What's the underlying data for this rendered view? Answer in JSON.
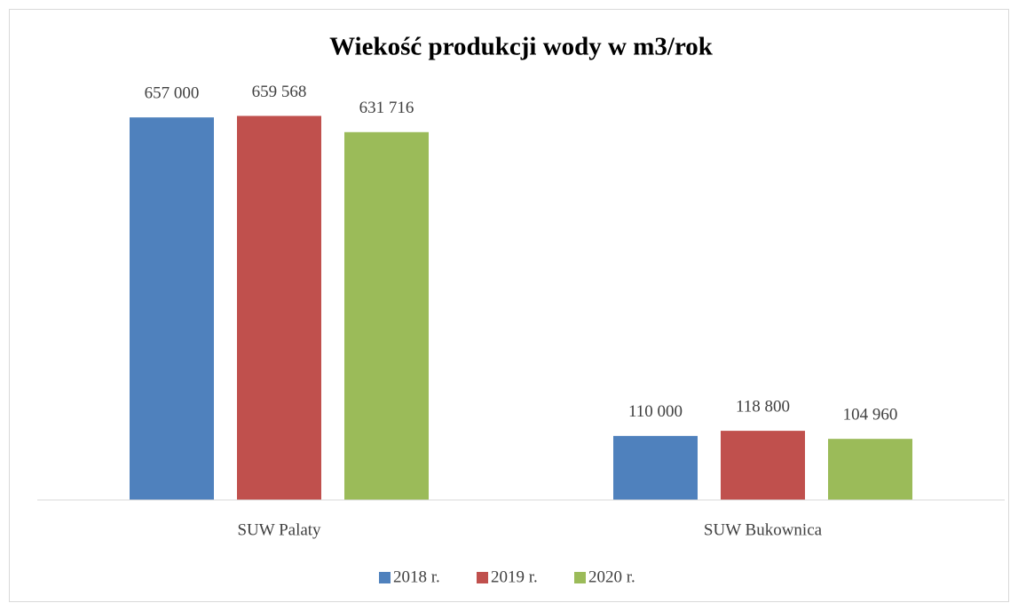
{
  "chart_data": {
    "type": "bar",
    "title": "Wiekość produkcji wody w m3/rok",
    "categories": [
      "SUW Palaty",
      "SUW Bukownica"
    ],
    "series": [
      {
        "name": "2018 r.",
        "color": "#4f81bd",
        "values": [
          657000,
          110000
        ],
        "value_labels": [
          "657 000",
          "110 000"
        ]
      },
      {
        "name": "2019 r.",
        "color": "#c0504d",
        "values": [
          659568,
          118800
        ],
        "value_labels": [
          "659 568",
          "118 800"
        ]
      },
      {
        "name": "2020 r.",
        "color": "#9bbb59",
        "values": [
          631716,
          104960
        ],
        "value_labels": [
          "631 716",
          "104 960"
        ]
      }
    ],
    "ylim": [
      0,
      700000
    ],
    "legend": "bottom"
  }
}
